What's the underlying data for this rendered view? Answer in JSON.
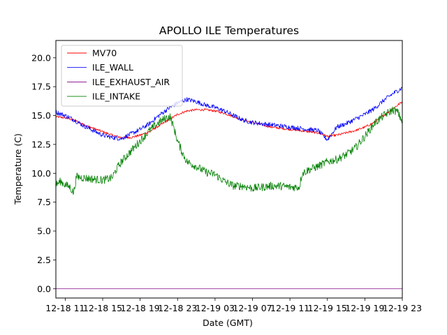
{
  "chart_data": {
    "type": "line",
    "title": "APOLLO ILE Temperatures",
    "xlabel": "Date (GMT)",
    "ylabel": "Temperature (C)",
    "xlim": [
      10.0,
      47.0
    ],
    "ylim": [
      -0.8,
      21.5
    ],
    "x_units": "hours since 2019-12-18 00:00 GMT",
    "x_ticks": [
      {
        "value": 11,
        "label": "12-18 11"
      },
      {
        "value": 15,
        "label": "12-18 15"
      },
      {
        "value": 19,
        "label": "12-18 19"
      },
      {
        "value": 23,
        "label": "12-18 23"
      },
      {
        "value": 27,
        "label": "12-19 03"
      },
      {
        "value": 31,
        "label": "12-19 07"
      },
      {
        "value": 35,
        "label": "12-19 11"
      },
      {
        "value": 39,
        "label": "12-19 15"
      },
      {
        "value": 43,
        "label": "12-19 19"
      },
      {
        "value": 47,
        "label": "12-19 23"
      }
    ],
    "y_ticks": [
      {
        "value": 0.0,
        "label": "0.0"
      },
      {
        "value": 2.5,
        "label": "2.5"
      },
      {
        "value": 5.0,
        "label": "5.0"
      },
      {
        "value": 7.5,
        "label": "7.5"
      },
      {
        "value": 10.0,
        "label": "10.0"
      },
      {
        "value": 12.5,
        "label": "12.5"
      },
      {
        "value": 15.0,
        "label": "15.0"
      },
      {
        "value": 17.5,
        "label": "17.5"
      },
      {
        "value": 20.0,
        "label": "20.0"
      }
    ],
    "grid": false,
    "legend_position": "top-left",
    "series": [
      {
        "name": "MV70",
        "color": "#ff0000",
        "x": [
          10.0,
          11.0,
          12.0,
          13.0,
          14.0,
          15.0,
          16.0,
          17.0,
          18.0,
          19.0,
          20.0,
          21.0,
          22.0,
          23.0,
          24.0,
          25.0,
          26.0,
          27.0,
          28.0,
          29.0,
          30.0,
          31.0,
          32.0,
          33.0,
          34.0,
          35.0,
          36.0,
          37.0,
          38.0,
          39.0,
          40.0,
          41.0,
          42.0,
          43.0,
          44.0,
          45.0,
          46.0,
          47.0
        ],
        "y": [
          14.9,
          14.8,
          14.6,
          14.2,
          13.9,
          13.6,
          13.3,
          13.1,
          13.1,
          13.3,
          13.6,
          14.1,
          14.6,
          15.1,
          15.4,
          15.5,
          15.5,
          15.4,
          15.2,
          14.9,
          14.6,
          14.4,
          14.2,
          14.0,
          13.9,
          13.8,
          13.7,
          13.6,
          13.5,
          13.2,
          13.3,
          13.5,
          13.7,
          14.0,
          14.4,
          15.0,
          15.6,
          16.2
        ]
      },
      {
        "name": "ILE_WALL",
        "color": "#0000ff",
        "x": [
          10.0,
          11.0,
          12.0,
          13.0,
          14.0,
          15.0,
          16.0,
          17.0,
          18.0,
          19.0,
          20.0,
          21.0,
          22.0,
          23.0,
          24.0,
          25.0,
          26.0,
          27.0,
          28.0,
          29.0,
          30.0,
          31.0,
          32.0,
          33.0,
          34.0,
          35.0,
          36.0,
          37.0,
          38.0,
          39.0,
          40.0,
          41.0,
          42.0,
          43.0,
          44.0,
          45.0,
          46.0,
          47.0
        ],
        "y": [
          15.3,
          15.0,
          14.6,
          14.1,
          13.7,
          13.3,
          13.1,
          13.0,
          13.4,
          13.8,
          14.3,
          15.0,
          15.6,
          16.1,
          16.4,
          16.2,
          15.9,
          15.7,
          15.4,
          15.0,
          14.6,
          14.4,
          14.3,
          14.2,
          14.1,
          14.0,
          13.9,
          13.8,
          13.7,
          12.9,
          14.0,
          14.3,
          14.7,
          15.1,
          15.6,
          16.3,
          16.9,
          17.4
        ]
      },
      {
        "name": "ILE_EXHAUST_AIR",
        "color": "#800080",
        "x": [
          10.0,
          47.0
        ],
        "y": [
          0.0,
          0.0
        ]
      },
      {
        "name": "ILE_INTAKE",
        "color": "#008000",
        "x": [
          10.0,
          10.5,
          11.0,
          11.5,
          11.9,
          12.2,
          13.0,
          14.0,
          15.0,
          16.0,
          16.5,
          17.0,
          18.0,
          19.0,
          20.0,
          21.0,
          21.8,
          22.2,
          22.5,
          23.0,
          23.5,
          24.0,
          25.0,
          26.0,
          27.0,
          28.0,
          29.0,
          30.0,
          31.0,
          32.0,
          33.0,
          34.0,
          35.0,
          36.0,
          36.3,
          37.0,
          38.0,
          39.0,
          40.0,
          41.0,
          42.0,
          43.0,
          44.0,
          45.0,
          46.0,
          46.5,
          47.0
        ],
        "y": [
          9.0,
          9.3,
          9.0,
          8.8,
          8.3,
          9.7,
          9.6,
          9.5,
          9.4,
          9.6,
          10.4,
          11.0,
          11.9,
          12.8,
          13.7,
          14.4,
          14.8,
          14.9,
          14.2,
          12.8,
          11.8,
          11.0,
          10.6,
          10.1,
          9.9,
          9.3,
          8.9,
          8.9,
          8.7,
          8.8,
          8.9,
          8.9,
          8.8,
          8.8,
          10.0,
          10.3,
          10.6,
          11.0,
          11.2,
          11.6,
          12.2,
          13.2,
          14.3,
          15.0,
          15.5,
          15.3,
          14.5
        ]
      }
    ]
  }
}
